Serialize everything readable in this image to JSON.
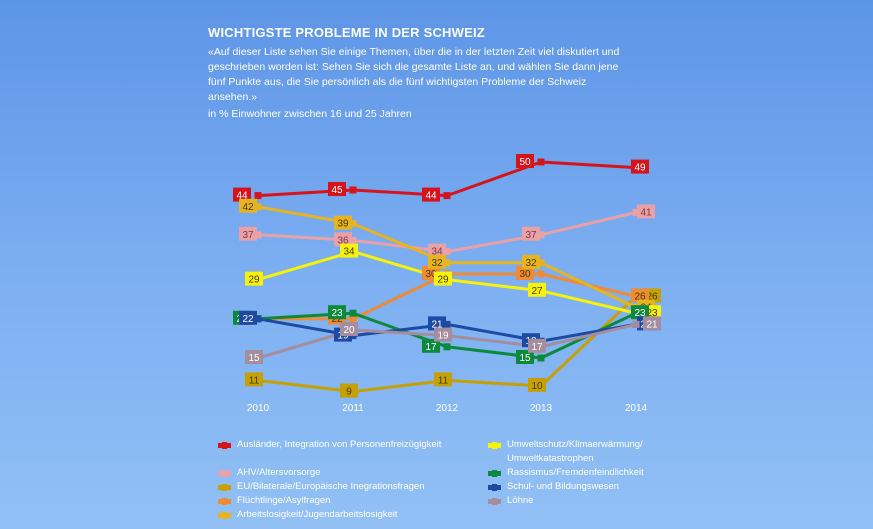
{
  "header": {
    "title": "WICHTIGSTE PROBLEME IN DER SCHWEIZ",
    "subtitle": "«Auf dieser Liste sehen Sie einige Themen, über die in der letzten Zeit viel diskutiert und geschrieben worden ist: Sehen Sie sich die gesamte Liste an, und wählen Sie dann jene fünf Punkte aus, die Sie persönlich als die fünf wichtigsten Probleme der Schweiz ansehen.»",
    "unit": "in % Einwohner zwischen 16 und 25 Jahren"
  },
  "chart_data": {
    "type": "line",
    "x": [
      "2010",
      "2011",
      "2012",
      "2013",
      "2014"
    ],
    "grid": false,
    "legend_position": "bottom",
    "series": [
      {
        "name": "Ausländer, Integration von Personenfreizügigkeit",
        "color": "#d6131b",
        "values": [
          44,
          45,
          44,
          50,
          49
        ]
      },
      {
        "name": "AHV/Altersvorsorge",
        "color": "#e9a0a6",
        "values": [
          37,
          36,
          34,
          37,
          41
        ]
      },
      {
        "name": "EU/Bilaterale/Europäische Inegrationsfragen",
        "color": "#c6a000",
        "values": [
          11,
          9,
          11,
          10,
          26
        ]
      },
      {
        "name": "Flüchtlinge/Asylfragen",
        "color": "#ef8a35",
        "values": [
          22,
          22,
          30,
          30,
          26
        ]
      },
      {
        "name": "Arbeitslosigkeit/Jugendarbeitslosigkeit",
        "color": "#e6b421",
        "values": [
          42,
          39,
          32,
          32,
          24
        ]
      },
      {
        "name": "Umweltschutz/Klimaerwärmung/ Umweltkatastrophen",
        "color": "#f6f20a",
        "values": [
          29,
          34,
          29,
          27,
          23
        ]
      },
      {
        "name": "Rassismus/Fremdenfeindlichkeit",
        "color": "#0c8a3c",
        "values": [
          22,
          23,
          17,
          15,
          23
        ]
      },
      {
        "name": "Schul- und Bildungswesen",
        "color": "#1e4aa3",
        "values": [
          22,
          19,
          21,
          18,
          21
        ]
      },
      {
        "name": "Löhne",
        "color": "#a48d9e",
        "values": [
          15,
          20,
          19,
          17,
          21
        ]
      }
    ]
  }
}
